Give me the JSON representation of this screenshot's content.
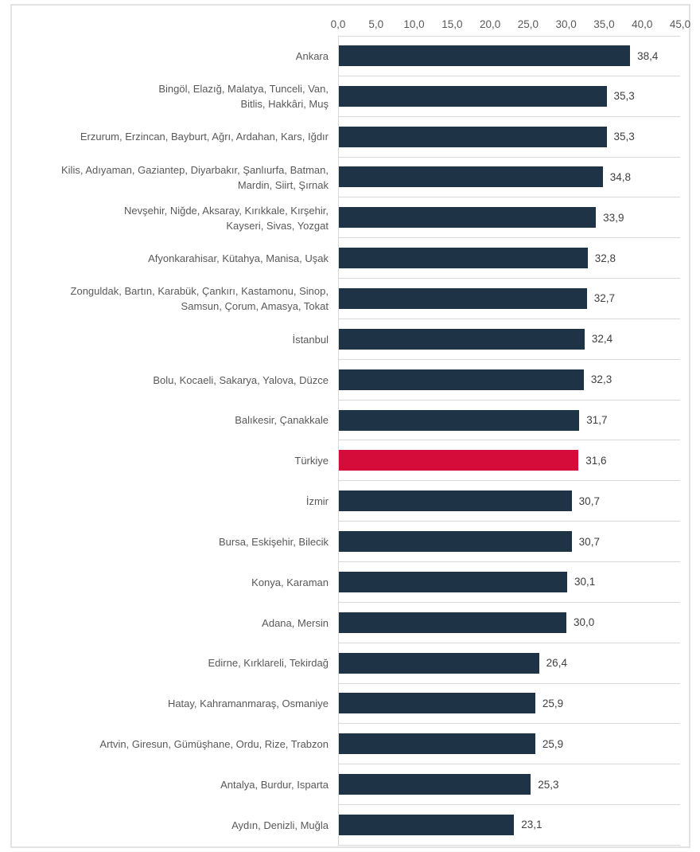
{
  "chart_data": {
    "type": "bar",
    "orientation": "horizontal",
    "title": "",
    "xlabel": "",
    "ylabel": "",
    "xlim": [
      0,
      45
    ],
    "x_ticks": [
      "0,0",
      "5,0",
      "10,0",
      "15,0",
      "20,0",
      "25,0",
      "30,0",
      "35,0",
      "40,0",
      "45,0"
    ],
    "grid": "horizontal-row-separators",
    "legend": null,
    "categories": [
      "Ankara",
      "Bingöl, Elazığ, Malatya, Tunceli, Van, Bitlis, Hakkâri, Muş",
      "Erzurum, Erzincan, Bayburt, Ağrı, Ardahan, Kars, Iğdır",
      "Kilis, Adıyaman, Gaziantep, Diyarbakır, Şanlıurfa, Batman, Mardin, Siirt, Şırnak",
      "Nevşehir, Niğde, Aksaray, Kırıkkale, Kırşehir, Kayseri, Sivas, Yozgat",
      "Afyonkarahisar, Kütahya, Manisa, Uşak",
      "Zonguldak, Bartın, Karabük, Çankırı, Kastamonu, Sinop, Samsun, Çorum, Amasya, Tokat",
      "İstanbul",
      "Bolu, Kocaeli, Sakarya, Yalova, Düzce",
      "Balıkesir, Çanakkale",
      "Türkiye",
      "İzmir",
      "Bursa, Eskişehir, Bilecik",
      "Konya, Karaman",
      "Adana, Mersin",
      "Edirne, Kırklareli, Tekirdağ",
      "Hatay, Kahramanmaraş, Osmaniye",
      "Artvin, Giresun, Gümüşhane, Ordu, Rize, Trabzon",
      "Antalya, Burdur, Isparta",
      "Aydın, Denizli, Muğla"
    ],
    "label_lines": [
      [
        "Ankara"
      ],
      [
        "Bingöl, Elazığ, Malatya, Tunceli, Van,",
        "Bitlis, Hakkâri, Muş"
      ],
      [
        "Erzurum, Erzincan, Bayburt, Ağrı, Ardahan, Kars, Iğdır"
      ],
      [
        "Kilis, Adıyaman, Gaziantep, Diyarbakır, Şanlıurfa, Batman,",
        "Mardin, Siirt, Şırnak"
      ],
      [
        "Nevşehir, Niğde, Aksaray, Kırıkkale, Kırşehir,",
        "Kayseri, Sivas, Yozgat"
      ],
      [
        "Afyonkarahisar, Kütahya, Manisa, Uşak"
      ],
      [
        "Zonguldak, Bartın, Karabük, Çankırı, Kastamonu, Sinop,",
        "Samsun, Çorum, Amasya, Tokat"
      ],
      [
        "İstanbul"
      ],
      [
        "Bolu, Kocaeli, Sakarya, Yalova, Düzce"
      ],
      [
        "Balıkesir, Çanakkale"
      ],
      [
        "Türkiye"
      ],
      [
        "İzmir"
      ],
      [
        "Bursa, Eskişehir, Bilecik"
      ],
      [
        "Konya, Karaman"
      ],
      [
        "Adana, Mersin"
      ],
      [
        "Edirne, Kırklareli, Tekirdağ"
      ],
      [
        "Hatay, Kahramanmaraş, Osmaniye"
      ],
      [
        "Artvin, Giresun, Gümüşhane, Ordu, Rize, Trabzon"
      ],
      [
        "Antalya, Burdur, Isparta"
      ],
      [
        "Aydın, Denizli, Muğla"
      ]
    ],
    "values": [
      38.4,
      35.3,
      35.3,
      34.8,
      33.9,
      32.8,
      32.7,
      32.4,
      32.3,
      31.7,
      31.6,
      30.7,
      30.7,
      30.1,
      30.0,
      26.4,
      25.9,
      25.9,
      25.3,
      23.1
    ],
    "value_labels": [
      "38,4",
      "35,3",
      "35,3",
      "34,8",
      "33,9",
      "32,8",
      "32,7",
      "32,4",
      "32,3",
      "31,7",
      "31,6",
      "30,7",
      "30,7",
      "30,1",
      "30,0",
      "26,4",
      "25,9",
      "25,9",
      "25,3",
      "23,1"
    ],
    "highlight_category": "Türkiye",
    "highlight_index": 10,
    "colors": {
      "bar": "#1f3347",
      "highlight_bar": "#d50b3a",
      "gridline": "#d9d9d9",
      "frame_border": "#e2e2e2",
      "tick_text": "#595959",
      "category_text": "#595959",
      "value_text": "#404040"
    }
  }
}
